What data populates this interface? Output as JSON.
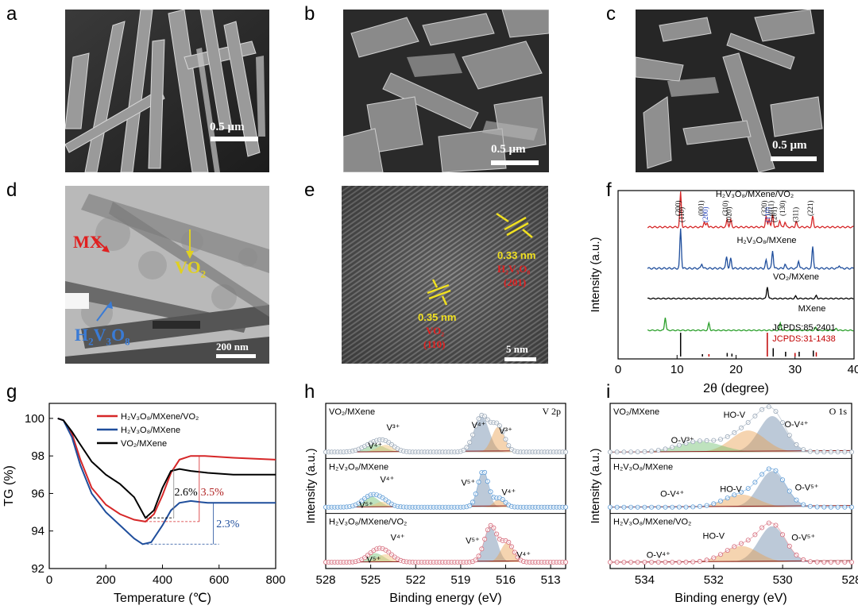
{
  "panels": {
    "a": {
      "label": "a",
      "scale": "0.5 µm"
    },
    "b": {
      "label": "b",
      "scale": "0.5 µm"
    },
    "c": {
      "label": "c",
      "scale": "0.5 µm"
    },
    "d": {
      "label": "d",
      "scale": "200 nm",
      "ann_mx": "MX",
      "ann_vo2": "VO",
      "ann_vo2_sub": "2",
      "ann_hvo": "H",
      "ann_hvo_sub": "2",
      "ann_hvo_v": "V",
      "ann_hvo_sub2": "3",
      "ann_hvo_o": "O",
      "ann_hvo_sub3": "8"
    },
    "e": {
      "label": "e",
      "scale": "5 nm",
      "d1": "0.33 nm",
      "d1_phase": "H₂V₃O₈",
      "d1_hkl": "(201)",
      "d2": "0.35 nm",
      "d2_phase": "VO₂",
      "d2_hkl": "(110)"
    },
    "f": {
      "label": "f"
    },
    "g": {
      "label": "g"
    },
    "h": {
      "label": "h"
    },
    "i": {
      "label": "i"
    }
  },
  "chart_data": [
    {
      "panel": "f",
      "type": "line",
      "xlabel": "2θ (degree)",
      "ylabel": "Intensity (a.u.)",
      "xlim": [
        0,
        40
      ],
      "xticks": [
        "0",
        "10",
        "20",
        "30",
        "40"
      ],
      "series": [
        {
          "name": "H₂V₃O₈/MXene/VO₂",
          "color": "#d62728",
          "peaks": [
            [
              10.6,
              1.0
            ],
            [
              14.6,
              0.15
            ],
            [
              15.1,
              0.12
            ],
            [
              18.5,
              0.22
            ],
            [
              19.1,
              0.2
            ],
            [
              25.1,
              0.3
            ],
            [
              25.6,
              0.25
            ],
            [
              26.2,
              0.35
            ],
            [
              27.4,
              0.2
            ],
            [
              28.3,
              0.15
            ],
            [
              30.2,
              0.15
            ],
            [
              33.0,
              0.3
            ]
          ]
        },
        {
          "name": "H₂V₃O₈/MXene",
          "color": "#1f4e9c",
          "peaks": [
            [
              10.6,
              1.0
            ],
            [
              14.2,
              0.12
            ],
            [
              18.4,
              0.3
            ],
            [
              19.1,
              0.25
            ],
            [
              25.1,
              0.2
            ],
            [
              26.2,
              0.45
            ],
            [
              28.3,
              0.1
            ],
            [
              30.6,
              0.2
            ],
            [
              33.0,
              0.55
            ],
            [
              37.5,
              0.08
            ]
          ]
        },
        {
          "name": "VO₂/MXene",
          "color": "#000000",
          "peaks": [
            [
              25.3,
              0.5
            ],
            [
              30.1,
              0.1
            ],
            [
              33.6,
              0.12
            ]
          ]
        },
        {
          "name": "MXene",
          "color": "#2ca02c",
          "peaks": [
            [
              8.0,
              0.55
            ],
            [
              15.4,
              0.3
            ],
            [
              27.5,
              0.3
            ],
            [
              33.5,
              0.12
            ],
            [
              37.0,
              0.08
            ]
          ]
        }
      ],
      "reference": [
        {
          "name": "JCPDS:85-2401",
          "color": "#000000",
          "lines": [
            [
              10.6,
              1.0
            ],
            [
              14.3,
              0.1
            ],
            [
              18.5,
              0.15
            ],
            [
              19.3,
              0.12
            ],
            [
              26.3,
              0.35
            ],
            [
              28.4,
              0.2
            ],
            [
              30.7,
              0.2
            ],
            [
              33.1,
              0.25
            ]
          ]
        },
        {
          "name": "JCPDS:31-1438",
          "color": "#c00000",
          "lines": [
            [
              15.4,
              0.1
            ],
            [
              25.3,
              1.0
            ],
            [
              30.0,
              0.15
            ],
            [
              33.6,
              0.18
            ]
          ]
        }
      ],
      "hkl": [
        "(200)",
        "(110)",
        "(001)",
        "(200)",
        "(310)",
        "(020)",
        "(320)",
        "(110)",
        "(011)",
        "(201)",
        "(130)",
        "(311)",
        "(221)"
      ]
    },
    {
      "panel": "g",
      "type": "line",
      "xlabel": "Temperature (℃)",
      "ylabel": "TG (%)",
      "xlim": [
        0,
        800
      ],
      "ylim": [
        92,
        100.8
      ],
      "xticks": [
        "0",
        "200",
        "400",
        "600",
        "800"
      ],
      "yticks": [
        "92",
        "94",
        "96",
        "98",
        "100"
      ],
      "legend": "top-left",
      "series": [
        {
          "name": "H₂V₃O₈/MXene/VO₂",
          "color": "#d62728",
          "x": [
            30,
            50,
            80,
            110,
            150,
            200,
            250,
            300,
            340,
            370,
            400,
            430,
            460,
            500,
            550,
            650,
            800
          ],
          "y": [
            100,
            99.9,
            99.2,
            97.8,
            96.3,
            95.4,
            94.9,
            94.6,
            94.5,
            94.9,
            95.9,
            97.1,
            97.8,
            98.0,
            98.0,
            97.9,
            97.8
          ]
        },
        {
          "name": "H₂V₃O₈/MXene",
          "color": "#1f4e9c",
          "x": [
            30,
            50,
            80,
            110,
            150,
            200,
            250,
            300,
            330,
            360,
            400,
            430,
            460,
            500,
            560,
            650,
            800
          ],
          "y": [
            100,
            99.9,
            99.0,
            97.5,
            96.0,
            95.0,
            94.3,
            93.6,
            93.3,
            93.4,
            94.3,
            95.1,
            95.5,
            95.6,
            95.5,
            95.5,
            95.5
          ]
        },
        {
          "name": "VO₂/MXene",
          "color": "#000000",
          "x": [
            30,
            50,
            80,
            110,
            150,
            200,
            250,
            300,
            340,
            370,
            400,
            430,
            460,
            500,
            560,
            650,
            800
          ],
          "y": [
            100,
            99.9,
            99.3,
            98.6,
            97.7,
            97.0,
            96.5,
            95.8,
            94.7,
            95.1,
            96.3,
            97.2,
            97.3,
            97.2,
            97.1,
            97.0,
            97.0
          ]
        }
      ],
      "annotations": [
        "2.6%",
        "3.5%",
        "2.3%"
      ]
    },
    {
      "panel": "h",
      "type": "line",
      "xlabel": "Binding energy (eV)",
      "ylabel": "Intensity (a.u.)",
      "xlim": [
        528,
        512
      ],
      "xticks": [
        "528",
        "525",
        "522",
        "519",
        "516",
        "513"
      ],
      "corner_label": "V 2p",
      "subpanels": [
        {
          "name": "VO₂/MXene",
          "labels": [
            "V⁴⁺",
            "V³⁺",
            "V⁴⁺",
            "V³⁺"
          ]
        },
        {
          "name": "H₂V₃O₈/MXene",
          "labels": [
            "V⁴⁺",
            "V⁵⁺",
            "V⁵⁺",
            "V⁴⁺"
          ]
        },
        {
          "name": "H₂V₃O₈/MXene/VO₂",
          "labels": [
            "V⁴⁺",
            "V⁵⁺",
            "V⁵⁺",
            "V⁴⁺"
          ]
        }
      ]
    },
    {
      "panel": "i",
      "type": "line",
      "xlabel": "Binding energy (eV)",
      "ylabel": "Intensity (a.u.)",
      "xlim": [
        535,
        528
      ],
      "xticks": [
        "534",
        "532",
        "530",
        "528"
      ],
      "corner_label": "O 1s",
      "subpanels": [
        {
          "name": "VO₂/MXene",
          "labels": [
            "O-V³⁺",
            "HO-V",
            "O-V⁴⁺"
          ]
        },
        {
          "name": "H₂V₃O₈/MXene",
          "labels": [
            "O-V⁴⁺",
            "HO-V",
            "O-V⁵⁺"
          ]
        },
        {
          "name": "H₂V₃O₈/MXene/VO₂",
          "labels": [
            "O-V⁴⁺",
            "HO-V",
            "O-V⁵⁺"
          ]
        }
      ]
    }
  ]
}
